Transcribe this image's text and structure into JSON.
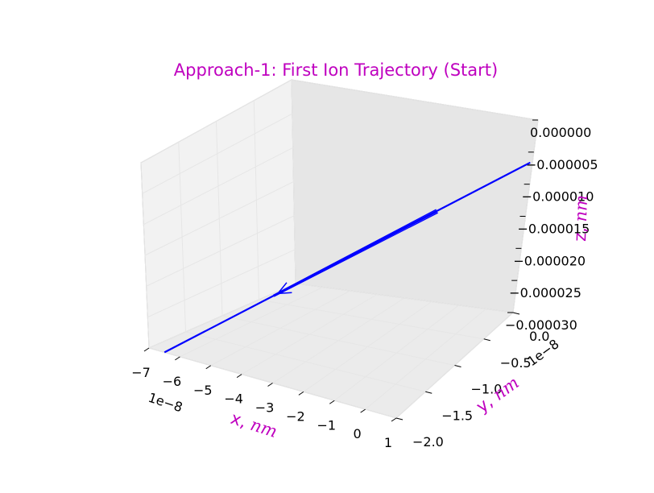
{
  "chart_data": {
    "type": "line",
    "title": "Approach-1: First Ion Trajectory (Start)",
    "xlabel": {
      "text": "x, ",
      "unit": "nm"
    },
    "ylabel": {
      "text": "y, ",
      "unit": "nm"
    },
    "zlabel": {
      "text": "z, ",
      "unit": "nm"
    },
    "xticks": [
      "−7",
      "−6",
      "−5",
      "−4",
      "−3",
      "−2",
      "−1",
      "0",
      "1"
    ],
    "yticks": [
      "0.0",
      "−0.5",
      "−1.0",
      "−1.5",
      "−2.0"
    ],
    "zticks": [
      "0.000000",
      "−0.000005",
      "−0.000010",
      "−0.000015",
      "−0.000020",
      "−0.000025",
      "−0.000030"
    ],
    "x_offset": "1e−8",
    "y_offset": "1e−8",
    "series": [
      {
        "color": "#0000ff",
        "x": [
          -6.5e-08,
          8e-09
        ],
        "y": [
          -2e-08,
          0.0
        ],
        "z": [
          -3e-05,
          0.0
        ]
      }
    ],
    "arrow": {
      "color": "#0000ff"
    },
    "grid": true
  }
}
